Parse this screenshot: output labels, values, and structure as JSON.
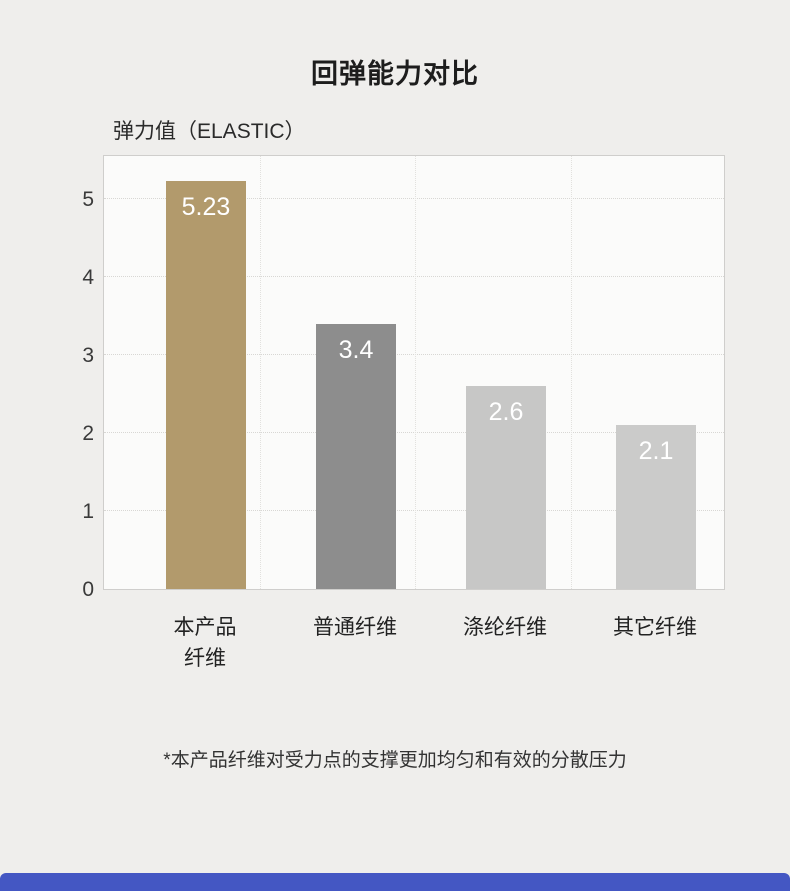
{
  "page": {
    "background_color": "#efeeec",
    "footer_bar_color": "#4457c3",
    "footnote": "*本产品纤维对受力点的支撑更加均匀和有效的分散压力"
  },
  "chart_data": {
    "type": "bar",
    "title": "回弹能力对比",
    "ylabel": "弹力值（ELASTIC）",
    "categories": [
      "本产品纤维",
      "普通纤维",
      "涤纶纤维",
      "其它纤维"
    ],
    "category_lines": [
      [
        "本产品",
        "纤维"
      ],
      [
        "普通纤维"
      ],
      [
        "涤纶纤维"
      ],
      [
        "其它纤维"
      ]
    ],
    "values": [
      5.23,
      3.4,
      2.6,
      2.1
    ],
    "value_labels": [
      "5.23",
      "3.4",
      "2.6",
      "2.1"
    ],
    "bar_colors": [
      "#b29a6c",
      "#8d8d8d",
      "#c7c7c6",
      "#cbcbca"
    ],
    "value_label_color": "#ffffff",
    "yticks": [
      0,
      1,
      2,
      3,
      4,
      5
    ],
    "ylim": [
      0,
      5.58
    ],
    "grid": "dotted",
    "legend": "none"
  }
}
